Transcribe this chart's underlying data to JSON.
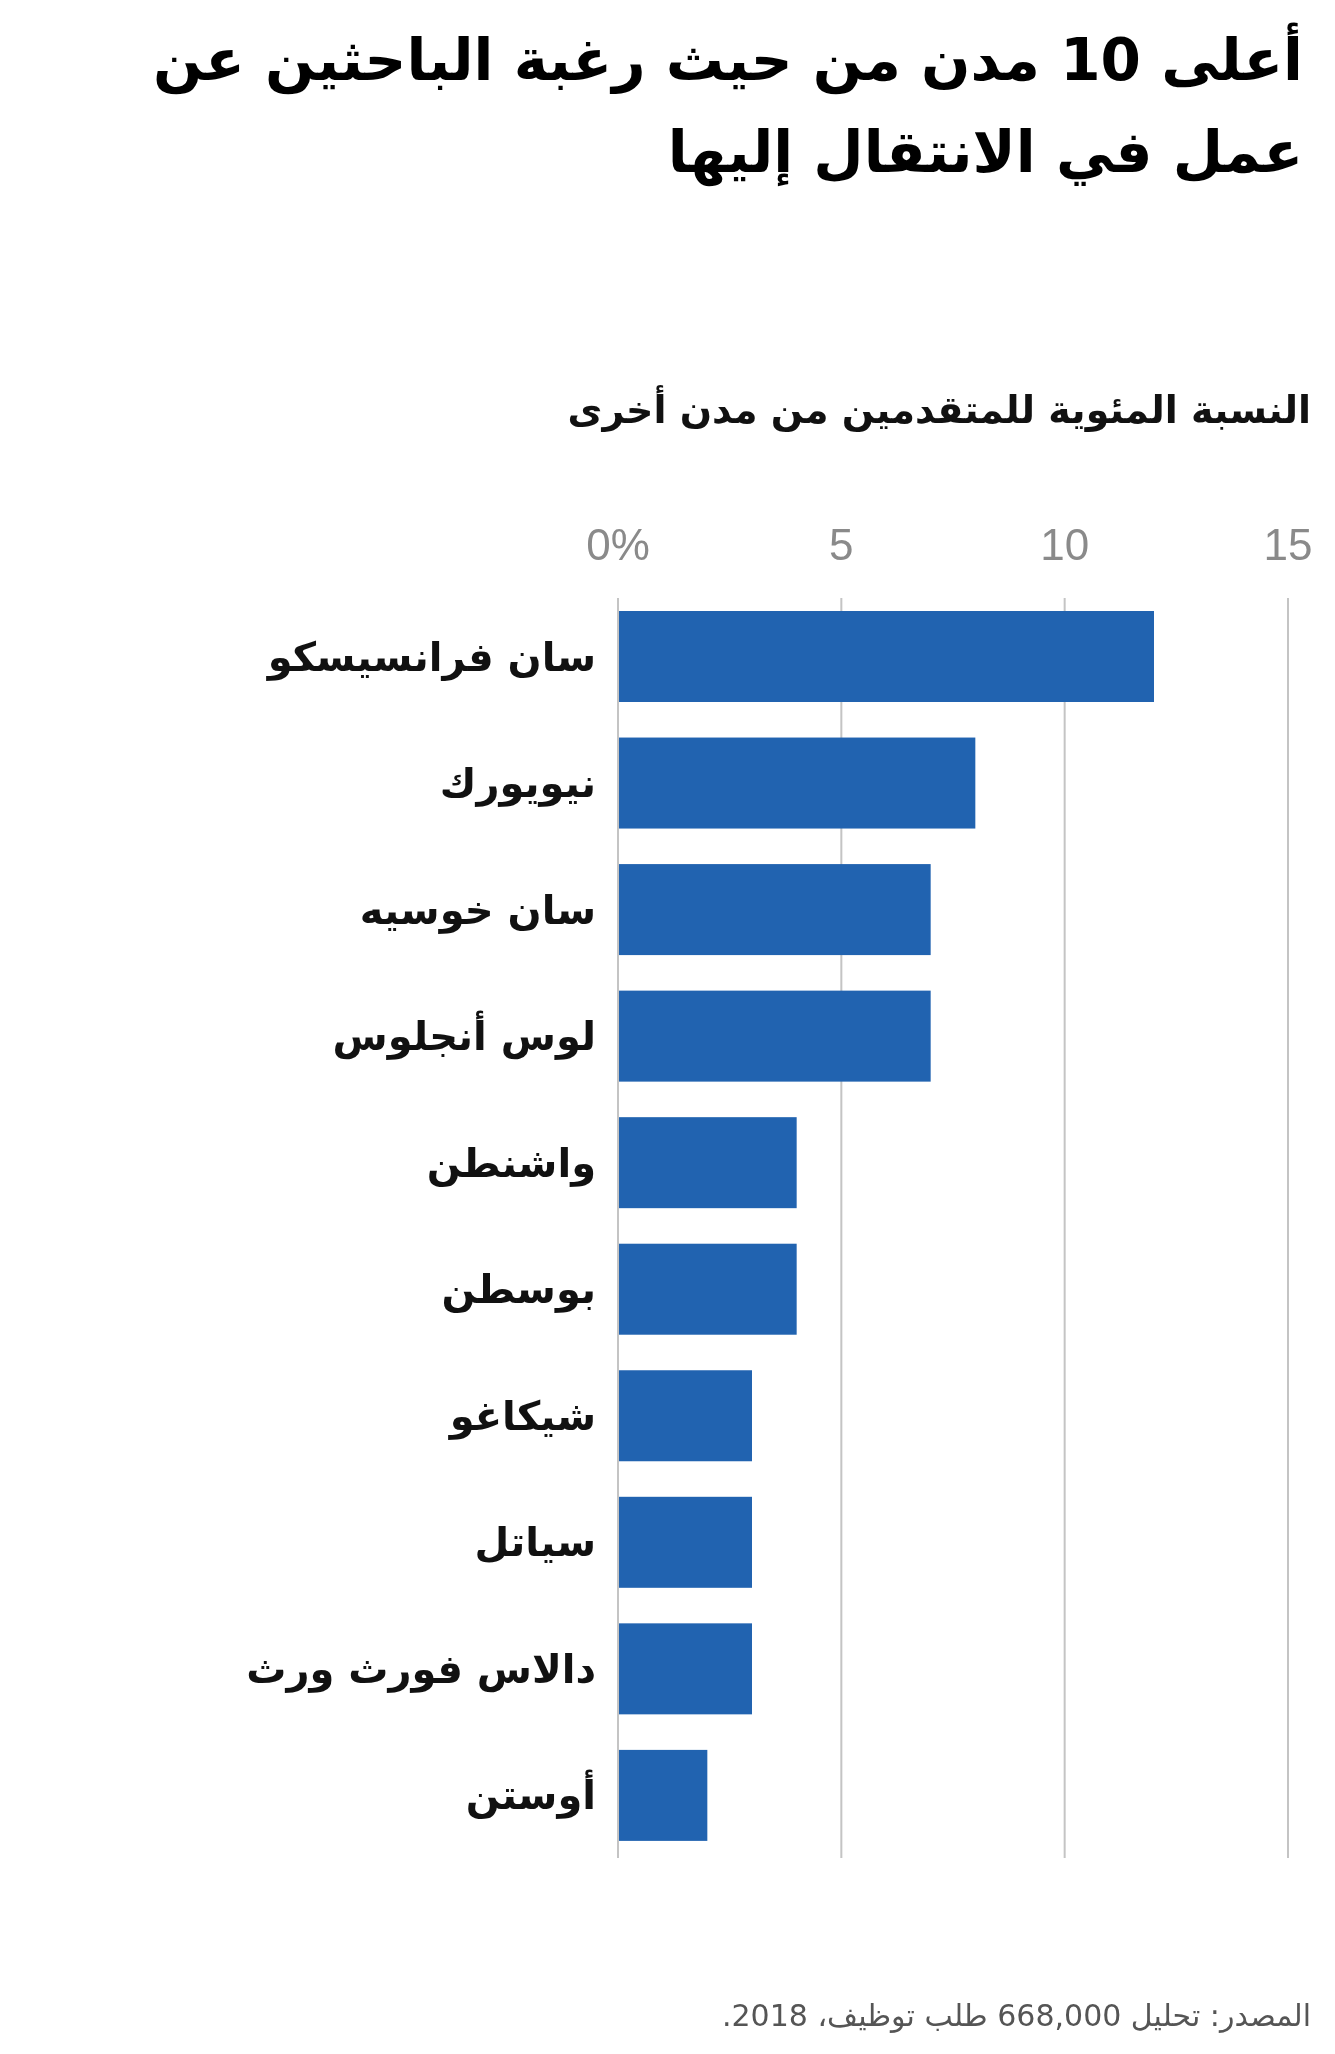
{
  "chart_data": {
    "type": "bar",
    "orientation": "horizontal",
    "title": "أعلى 10 مدن من حيث رغبة الباحثين عن عمل في الانتقال إليها",
    "xlabel": "النسبة المئوية للمتقدمين من مدن أخرى",
    "categories": [
      "سان فرانسيسكو",
      "نيويورك",
      "سان خوسيه",
      "لوس أنجلوس",
      "واشنطن",
      "بوسطن",
      "شيكاغو",
      "سياتل",
      "دالاس فورث ورث",
      "أوستن"
    ],
    "values": [
      12,
      8,
      7,
      7,
      4,
      4,
      3,
      3,
      3,
      2
    ],
    "color": "#2163b0",
    "xlim": [
      0,
      15
    ],
    "xticks": [
      {
        "value": 0,
        "label": "0%"
      },
      5,
      10,
      15
    ],
    "grid": "x",
    "annotations": [
      "المصدر: تحليل 668,000 طلب توظيف، 2018."
    ]
  }
}
